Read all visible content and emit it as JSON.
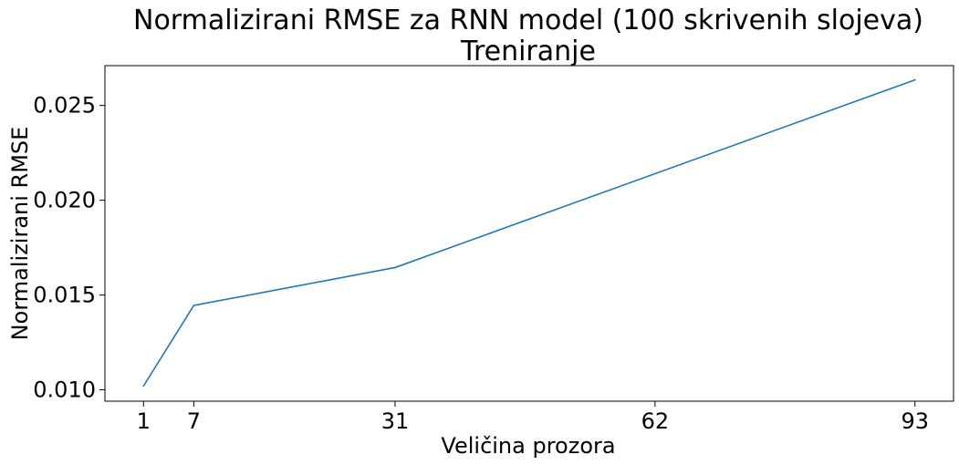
{
  "chart_data": {
    "type": "line",
    "title_lines": [
      "Normalizirani RMSE za RNN model (100 skrivenih slojeva)",
      "Treniranje"
    ],
    "xlabel": "Veličina prozora",
    "ylabel": "Normalizirani RMSE",
    "x_ticks": [
      1,
      7,
      31,
      62,
      93
    ],
    "y_ticks": [
      "0.010",
      "0.015",
      "0.020",
      "0.025"
    ],
    "xlim": [
      -3.6,
      97.6
    ],
    "ylim": [
      0.0094,
      0.0271
    ],
    "grid": false,
    "line_color": "#1f77b4",
    "series": [
      {
        "x": [
          1,
          7,
          31,
          93
        ],
        "values": [
          0.0102,
          0.01445,
          0.01645,
          0.02635
        ]
      }
    ]
  }
}
